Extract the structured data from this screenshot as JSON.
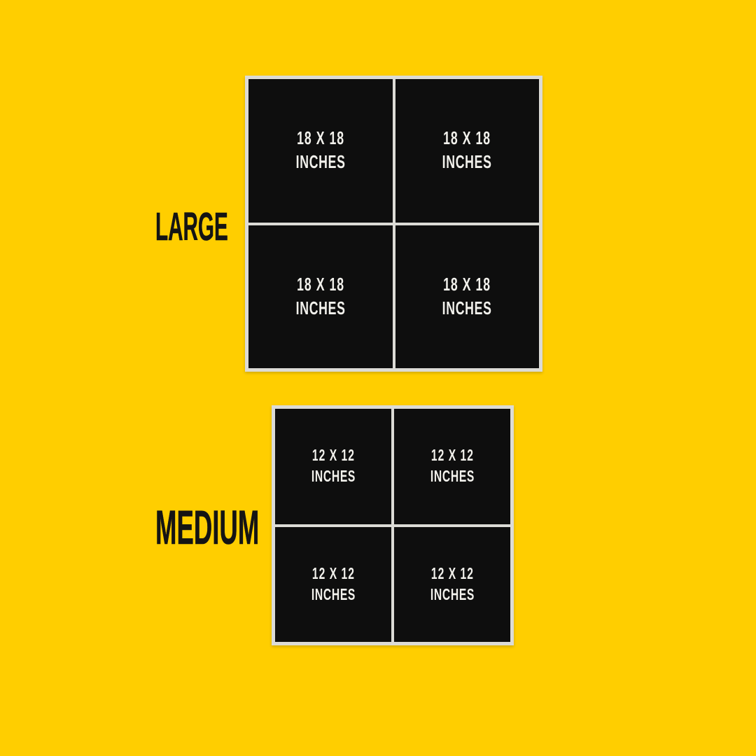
{
  "poster": {
    "colors": {
      "background": "#FFCE00",
      "panel": "#0E0E0E",
      "frame": "#DCDBD6",
      "label_text": "#141414",
      "cell_text": "#F2F1EC"
    },
    "sections": [
      {
        "id": "large",
        "label": "LARGE",
        "cells": [
          {
            "size": "18 X 18",
            "unit": "INCHES"
          },
          {
            "size": "18 X 18",
            "unit": "INCHES"
          },
          {
            "size": "18 X 18",
            "unit": "INCHES"
          },
          {
            "size": "18 X 18",
            "unit": "INCHES"
          }
        ]
      },
      {
        "id": "medium",
        "label": "MEDIUM",
        "cells": [
          {
            "size": "12 X 12",
            "unit": "INCHES"
          },
          {
            "size": "12 X 12",
            "unit": "INCHES"
          },
          {
            "size": "12 X 12",
            "unit": "INCHES"
          },
          {
            "size": "12 X 12",
            "unit": "INCHES"
          }
        ]
      }
    ]
  }
}
